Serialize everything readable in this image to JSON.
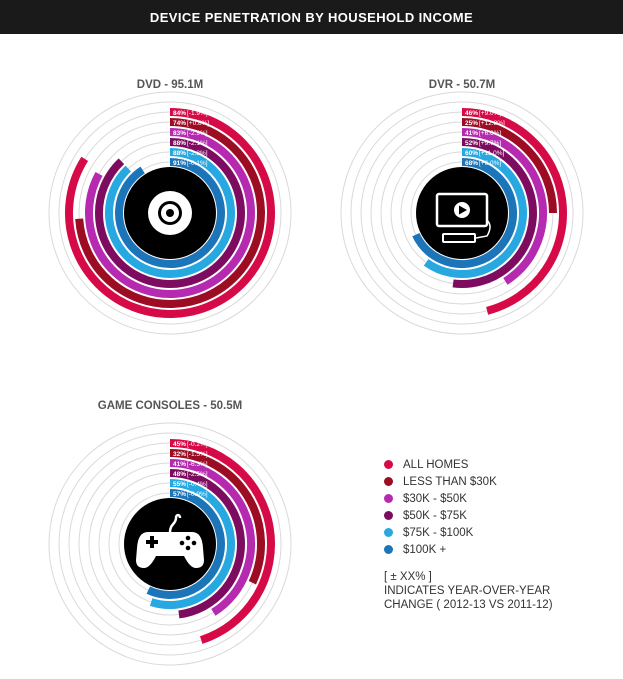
{
  "header": {
    "title": "DEVICE PENETRATION BY HOUSEHOLD INCOME"
  },
  "colors": {
    "all_homes": "#d60a46",
    "less_than_30k": "#9c0c23",
    "30k_50k": "#b52aae",
    "50k_75k": "#7d0c60",
    "75k_100k": "#27a8e0",
    "100k_plus": "#1b75b8",
    "guide_ring": "#d9d9d9",
    "center": "#000000"
  },
  "legend": {
    "items": [
      {
        "label": "ALL HOMES",
        "color": "#d60a46"
      },
      {
        "label": "LESS THAN $30K",
        "color": "#9c0c23"
      },
      {
        "label": "$30K - $50K",
        "color": "#b52aae"
      },
      {
        "label": "$50K - $75K",
        "color": "#7d0c60"
      },
      {
        "label": "$75K - $100K",
        "color": "#27a8e0"
      },
      {
        "label": "$100K +",
        "color": "#1b75b8"
      }
    ],
    "note_line1": "[ ± XX% ]",
    "note_line2": "INDICATES YEAR-OVER-YEAR",
    "note_line3": "CHANGE  ( 2012-13 VS 2011-12)"
  },
  "chart_data": [
    {
      "type": "radial-bar",
      "title": "DVD - 95.1M",
      "icon": "dvd-disc-icon",
      "series_names": [
        "ALL HOMES",
        "LESS THAN $30K",
        "$30K - $50K",
        "$50K - $75K",
        "$75K - $100K",
        "$100K +"
      ],
      "values": [
        84,
        74,
        83,
        88,
        88,
        91
      ],
      "labels": [
        "84%",
        "74%",
        "83%",
        "88%",
        "88%",
        "91%"
      ],
      "changes": [
        "[-1.9%]",
        "[+0.8%]",
        "[-2.9%]",
        "[-2.1%]",
        "[-2.3%]",
        "[-0.1%]"
      ]
    },
    {
      "type": "radial-bar",
      "title": "DVR - 50.7M",
      "icon": "dvr-screen-icon",
      "series_names": [
        "ALL HOMES",
        "LESS THAN $30K",
        "$30K - $50K",
        "$50K - $75K",
        "$75K - $100K",
        "$100K +"
      ],
      "values": [
        46,
        25,
        41,
        52,
        60,
        68
      ],
      "labels": [
        "46%",
        "25%",
        "41%",
        "52%",
        "60%",
        "68%"
      ],
      "changes": [
        "[+9.0%]",
        "[+12.8%]",
        "[+6.6%]",
        "[+9.7%]",
        "[+11.0%]",
        "[+6.0%]"
      ]
    },
    {
      "type": "radial-bar",
      "title": "GAME CONSOLES - 50.5M",
      "icon": "game-controller-icon",
      "series_names": [
        "ALL HOMES",
        "LESS THAN $30K",
        "$30K - $50K",
        "$50K - $75K",
        "$75K - $100K",
        "$100K +"
      ],
      "values": [
        45,
        32,
        41,
        48,
        55,
        57
      ],
      "labels": [
        "45%",
        "32%",
        "41%",
        "48%",
        "55%",
        "57%"
      ],
      "changes": [
        "[-0.2%]",
        "[-1.5%]",
        "[-6.3%]",
        "[-2.5%]",
        "[-0.4%]",
        "[-0.9%]"
      ]
    }
  ]
}
